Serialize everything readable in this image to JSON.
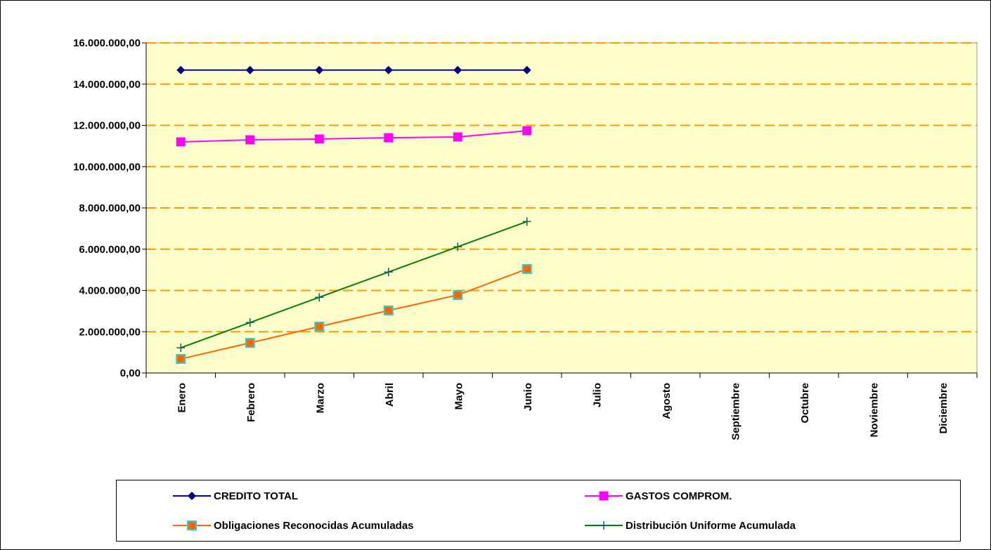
{
  "chart_data": {
    "type": "line",
    "categories": [
      "Enero",
      "Febrero",
      "Marzo",
      "Abril",
      "Mayo",
      "Junio",
      "Julio",
      "Agosto",
      "Septiembre",
      "Octubre",
      "Noviembre",
      "Diciembre"
    ],
    "series": [
      {
        "name": "CREDITO TOTAL",
        "color": "#0000cc",
        "marker": "diamond",
        "marker_color": "#000080",
        "values": [
          14680000,
          14680000,
          14680000,
          14680000,
          14680000,
          14680000,
          null,
          null,
          null,
          null,
          null,
          null
        ]
      },
      {
        "name": "GASTOS COMPROM.",
        "color": "#ff00ff",
        "marker": "square",
        "marker_color": "#ff00ff",
        "values": [
          11200000,
          11300000,
          11340000,
          11400000,
          11440000,
          11740000,
          null,
          null,
          null,
          null,
          null,
          null
        ]
      },
      {
        "name": "Obligaciones Reconocidas Acumuladas",
        "color": "#ff6600",
        "marker": "square",
        "marker_color": "#ff6600",
        "marker_edge": "#33cccc",
        "values": [
          680000,
          1460000,
          2250000,
          3030000,
          3780000,
          5040000,
          null,
          null,
          null,
          null,
          null,
          null
        ]
      },
      {
        "name": "Distribución Uniforme Acumulada",
        "color": "#008000",
        "marker": "plus",
        "marker_color": "#006666",
        "values": [
          1223333,
          2446667,
          3670000,
          4893333,
          6116667,
          7340000,
          null,
          null,
          null,
          null,
          null,
          null
        ]
      }
    ],
    "ylim": [
      0,
      16000000
    ],
    "yticks": [
      {
        "value": 0,
        "label": "0,00"
      },
      {
        "value": 2000000,
        "label": "2.000.000,00"
      },
      {
        "value": 4000000,
        "label": "4.000.000,00"
      },
      {
        "value": 6000000,
        "label": "6.000.000,00"
      },
      {
        "value": 8000000,
        "label": "8.000.000,00"
      },
      {
        "value": 10000000,
        "label": "10.000.000,00"
      },
      {
        "value": 12000000,
        "label": "12.000.000,00"
      },
      {
        "value": 14000000,
        "label": "14.000.000,00"
      },
      {
        "value": 16000000,
        "label": "16.000.000,00"
      }
    ],
    "grid": true,
    "grid_color": "#ff9900",
    "plot_background": "#ffffcc",
    "legend": "bottom"
  }
}
